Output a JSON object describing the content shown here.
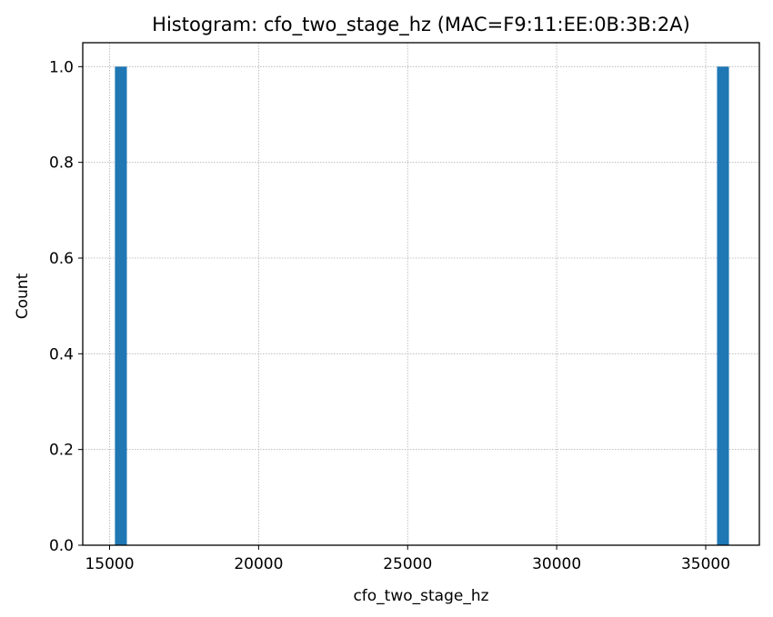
{
  "chart_data": {
    "type": "bar",
    "subtype": "histogram",
    "title": "Histogram: cfo_two_stage_hz (MAC=F9:11:EE:0B:3B:2A)",
    "xlabel": "cfo_two_stage_hz",
    "ylabel": "Count",
    "xlim": [
      14100,
      36800
    ],
    "ylim": [
      0,
      1.05
    ],
    "xticks": [
      15000,
      20000,
      25000,
      30000,
      35000
    ],
    "yticks": [
      0.0,
      0.2,
      0.4,
      0.6,
      0.8,
      1.0
    ],
    "ytick_labels": [
      "0.0",
      "0.2",
      "0.4",
      "0.6",
      "0.8",
      "1.0"
    ],
    "grid": true,
    "bins": [
      {
        "x0": 15180,
        "x1": 15580,
        "count": 1
      },
      {
        "x0": 35380,
        "x1": 35780,
        "count": 1
      }
    ],
    "colors": {
      "bar": "#1f77b4",
      "grid": "#b0b0b0",
      "axes": "#000000"
    }
  }
}
